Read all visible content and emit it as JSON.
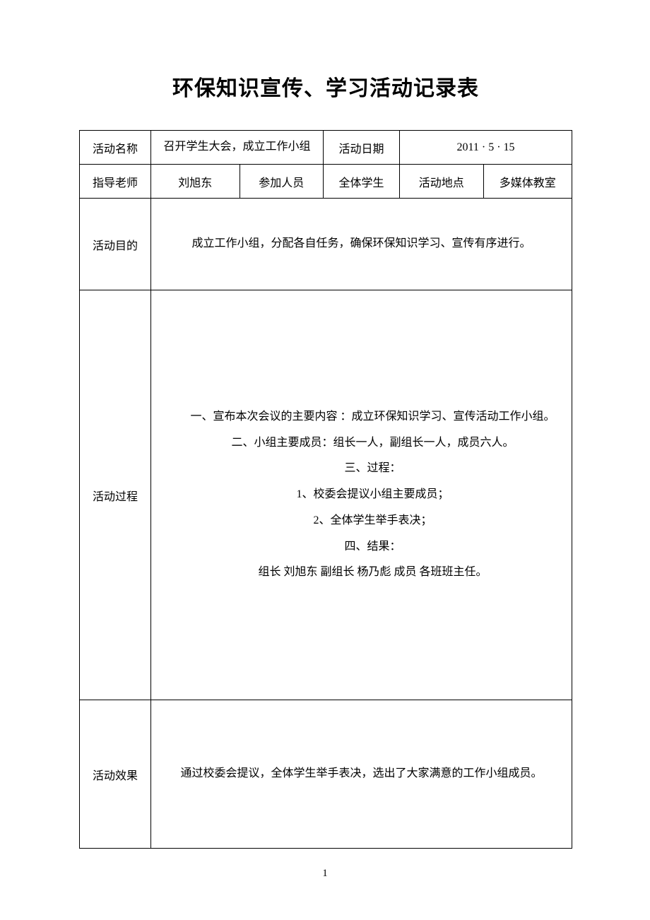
{
  "page": {
    "title": "环保知识宣传、学习活动记录表",
    "page_number": "1",
    "background_color": "#ffffff",
    "text_color": "#000000",
    "border_color": "#000000",
    "title_fontsize": 30,
    "body_fontsize": 16
  },
  "table": {
    "columns_pct": [
      14.5,
      18,
      17,
      15.5,
      17,
      18
    ],
    "row1": {
      "label_name": "活动名称",
      "value_name": "召开学生大会，成立工作小组",
      "label_date": "活动日期",
      "value_date": "2011 · 5 · 15"
    },
    "row2": {
      "label_teacher": "指导老师",
      "value_teacher": "刘旭东",
      "label_participants": "参加人员",
      "value_participants": "全体学生",
      "label_place": "活动地点",
      "value_place": "多媒体教室"
    },
    "purpose": {
      "label": "活动目的",
      "text": "成立工作小组，分配各自任务，确保环保知识学习、宣传有序进行。"
    },
    "process": {
      "label": "活动过程",
      "lines": [
        "一、宣布本次会议的主要内容 ：成立环保知识学习、宣传活动工作小组。",
        "二、小组主要成员：组长一人，副组长一人，成员六人。",
        "三、过程：",
        "1、校委会提议小组主要成员；",
        "2、全体学生举手表决；",
        "四、结果：",
        "组长 刘旭东   副组长 杨乃彪   成员   各班班主任。"
      ]
    },
    "result": {
      "label": "活动效果",
      "text": "通过校委会提议，全体学生举手表决，选出了大家满意的工作小组成员。"
    }
  }
}
